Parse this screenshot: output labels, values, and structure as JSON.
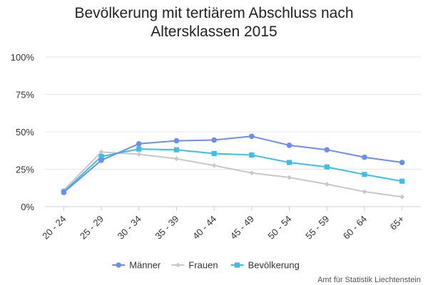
{
  "chart_data": {
    "type": "line",
    "title_line1": "Bevölkerung mit tertiärem Abschluss nach",
    "title_line2": "Altersklassen 2015",
    "source": "Amt für Statistik Liechtenstein",
    "categories": [
      "20 - 24",
      "25 - 29",
      "30 - 34",
      "35 - 39",
      "40 - 44",
      "45 - 49",
      "50 - 54",
      "55 - 59",
      "60 - 64",
      "65+"
    ],
    "y_ticks": [
      "0%",
      "25%",
      "50%",
      "75%",
      "100%"
    ],
    "ylim": [
      0,
      100
    ],
    "grid": true,
    "legend": "bottom",
    "series": [
      {
        "name": "Männer",
        "color": "#6b8ef0",
        "marker": "circle",
        "values": [
          9.5,
          31,
          42,
          44,
          44.5,
          47,
          41,
          38,
          33,
          29.5
        ]
      },
      {
        "name": "Frauen",
        "color": "#c8c8c8",
        "marker": "diamond",
        "values": [
          11,
          36.5,
          35,
          32,
          27.5,
          22.5,
          19.5,
          15,
          10,
          6.5
        ]
      },
      {
        "name": "Bevölkerung",
        "color": "#3dbde9",
        "marker": "square",
        "values": [
          10,
          33.5,
          38.5,
          38,
          35.5,
          34.5,
          29.5,
          26.5,
          21.5,
          17
        ]
      }
    ]
  }
}
